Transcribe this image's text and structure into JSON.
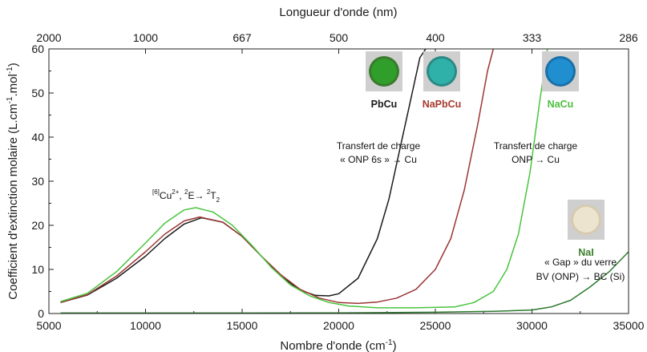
{
  "chart_data": {
    "type": "line",
    "title": "",
    "xlabel": "Nombre d'onde (cm",
    "xlabel_sup": "-1",
    "xlabel_close": ")",
    "x2label": "Longueur d'onde (nm)",
    "ylabel": "Coefficient d'extinction molaire (L.cm",
    "ylabel_sup1": "-1",
    "ylabel_mid": ".mol",
    "ylabel_sup2": "-1",
    "ylabel_close": ")",
    "xlim": [
      5000,
      35000
    ],
    "ylim": [
      0,
      60
    ],
    "x_ticks": [
      5000,
      10000,
      15000,
      20000,
      25000,
      30000,
      35000
    ],
    "y_ticks": [
      0,
      10,
      20,
      30,
      40,
      50,
      60
    ],
    "x2_ticks": [
      {
        "label": "2000",
        "wavenumber": 5000
      },
      {
        "label": "1000",
        "wavenumber": 10000
      },
      {
        "label": "667",
        "wavenumber": 15000
      },
      {
        "label": "500",
        "wavenumber": 20000
      },
      {
        "label": "400",
        "wavenumber": 25000
      },
      {
        "label": "333",
        "wavenumber": 30000
      },
      {
        "label": "286",
        "wavenumber": 35000
      }
    ],
    "series": [
      {
        "name": "PbCu",
        "color": "#1a1a1a",
        "x": [
          5600,
          7000,
          8500,
          10000,
          11000,
          12000,
          12900,
          14000,
          15000,
          16000,
          17000,
          18000,
          18800,
          19500,
          20000,
          21000,
          22000,
          22600,
          23200,
          23800,
          24200,
          24500
        ],
        "y": [
          2.5,
          4.2,
          8,
          13,
          17,
          20.3,
          21.7,
          20.7,
          17.5,
          13,
          8.5,
          5.3,
          4.1,
          4,
          4.5,
          8,
          17,
          26,
          38,
          50,
          58,
          60
        ]
      },
      {
        "name": "NaPbCu",
        "color": "#9c3535",
        "x": [
          5600,
          7000,
          8500,
          10000,
          11000,
          12000,
          12800,
          14000,
          15000,
          16000,
          17000,
          18000,
          19000,
          20000,
          21000,
          22000,
          23000,
          24000,
          25000,
          25800,
          26500,
          27200,
          27700,
          28000
        ],
        "y": [
          2.5,
          4.3,
          8.5,
          14,
          18,
          21,
          21.9,
          20.7,
          17.5,
          13,
          8.8,
          5.5,
          3.5,
          2.5,
          2.3,
          2.6,
          3.5,
          5.5,
          10,
          17,
          28,
          43,
          55,
          60
        ]
      },
      {
        "name": "NaCu",
        "color": "#49c43d",
        "x": [
          5600,
          7000,
          8500,
          10000,
          11000,
          12000,
          12600,
          13500,
          14500,
          15500,
          16500,
          17500,
          18500,
          19500,
          20500,
          22000,
          24000,
          26000,
          27000,
          28000,
          28700,
          29300,
          29900,
          30400,
          30800
        ],
        "y": [
          2.7,
          4.6,
          9.5,
          16,
          20.5,
          23.5,
          24,
          23,
          20,
          15.5,
          10.5,
          6.5,
          4,
          2.5,
          1.7,
          1.3,
          1.3,
          1.5,
          2.5,
          5,
          10,
          18,
          32,
          48,
          60
        ]
      },
      {
        "name": "NaI",
        "color": "#2e7a2e",
        "x": [
          5600,
          10000,
          15000,
          20000,
          25000,
          28000,
          30000,
          31000,
          32000,
          33000,
          34000,
          35000
        ],
        "y": [
          0.1,
          0.1,
          0.1,
          0.15,
          0.3,
          0.5,
          0.8,
          1.5,
          3,
          6,
          9.5,
          14
        ]
      }
    ],
    "annotations": {
      "cu_band": {
        "pre_sup": "[6]",
        "main": "Cu",
        "main_sup": "2+",
        "sep": ", ",
        "e_sup": "2",
        "e_text": "E→ ",
        "t_sup": "2",
        "t_text": "T",
        "t_sub": "2"
      },
      "charge1_line1": "Transfert de charge",
      "charge1_line2": "« ONP 6s » → Cu",
      "charge2_line1": "Transfert de charge",
      "charge2_line2": "ONP → Cu",
      "gap_line1": "« Gap » du verre",
      "gap_line2": "BV (ONP) → BC (Si)"
    },
    "samples": [
      {
        "label": "PbCu",
        "color": "#1a1a1a",
        "swatch": "#2f9e2a",
        "rim": "#3a7a2e"
      },
      {
        "label": "NaPbCu",
        "color": "#a53a30",
        "swatch": "#2fb0a8",
        "rim": "#2a8a86"
      },
      {
        "label": "NaCu",
        "color": "#4cbf3e",
        "swatch": "#1f8fd0",
        "rim": "#1b70a8"
      },
      {
        "label": "NaI",
        "color": "#3a7f2a",
        "swatch": "#ece4cf",
        "rim": "#d6cbb0"
      }
    ]
  }
}
